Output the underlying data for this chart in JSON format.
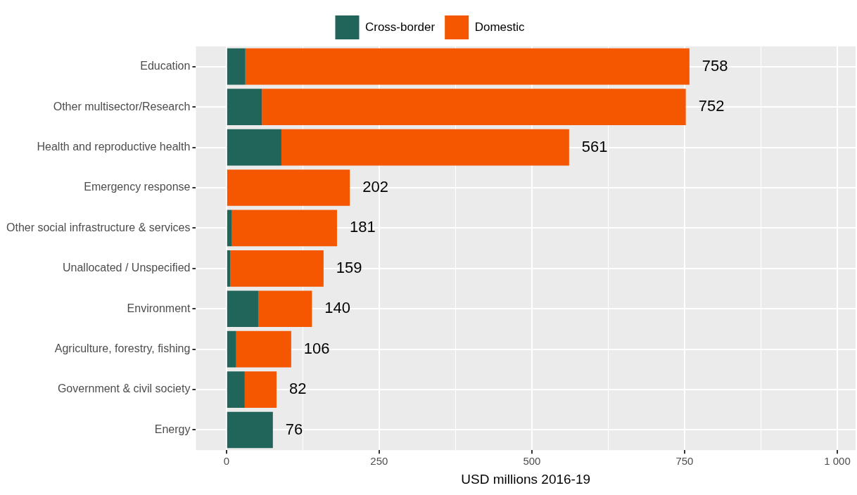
{
  "chart_data": {
    "type": "bar",
    "orientation": "horizontal",
    "stacked": true,
    "categories": [
      "Education",
      "Other multisector/Research",
      "Health and reproductive health",
      "Emergency response",
      "Other social infrastructure & services",
      "Unallocated / Unspecified",
      "Environment",
      "Agriculture, forestry, fishing",
      "Government & civil society",
      "Energy"
    ],
    "series": [
      {
        "name": "Cross-border",
        "color": "#20645a",
        "values": [
          31,
          58,
          90,
          0,
          9,
          6,
          52,
          16,
          30,
          76
        ]
      },
      {
        "name": "Domestic",
        "color": "#f55600",
        "values": [
          727,
          694,
          471,
          202,
          172,
          153,
          88,
          90,
          52,
          0
        ]
      }
    ],
    "totals": [
      "758",
      "752",
      "561",
      "202",
      "181",
      "159",
      "140",
      "106",
      "82",
      "76"
    ],
    "xlabel": "USD millions 2016-19",
    "xlim": [
      -50,
      1030
    ],
    "xticks": [
      0,
      {
        "value": 125,
        "label": null
      },
      250,
      {
        "value": 375,
        "label": null
      },
      500,
      {
        "value": 625,
        "label": null
      },
      750,
      {
        "value": 875,
        "label": null
      },
      {
        "value": 1000,
        "label": "1 000"
      }
    ],
    "grid": true,
    "legend": "top"
  }
}
